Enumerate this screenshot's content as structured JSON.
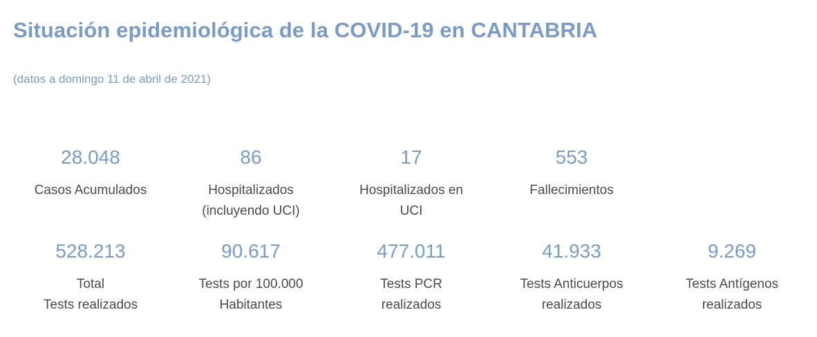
{
  "header": {
    "title": "Situación epidemiológica de la COVID-19 en CANTABRIA",
    "subtitle": "(datos a domingo 11 de abril de 2021)"
  },
  "stats_row1": [
    {
      "value": "28.048",
      "label": "Casos Acumulados"
    },
    {
      "value": "86",
      "label": "Hospitalizados\n(incluyendo UCI)"
    },
    {
      "value": "17",
      "label": "Hospitalizados en\nUCI"
    },
    {
      "value": "553",
      "label": "Fallecimientos"
    }
  ],
  "stats_row2": [
    {
      "value": "528.213",
      "label": "Total\nTests realizados"
    },
    {
      "value": "90.617",
      "label": "Tests por 100.000\nHabitantes"
    },
    {
      "value": "477.011",
      "label": " Tests PCR\nrealizados"
    },
    {
      "value": "41.933",
      "label": "Tests Anticuerpos\nrealizados"
    },
    {
      "value": "9.269",
      "label": "Tests Antígenos\nrealizados"
    }
  ],
  "colors": {
    "accent": "#7b9bc7",
    "label_text": "#4a4a4a",
    "background": "#ffffff"
  }
}
